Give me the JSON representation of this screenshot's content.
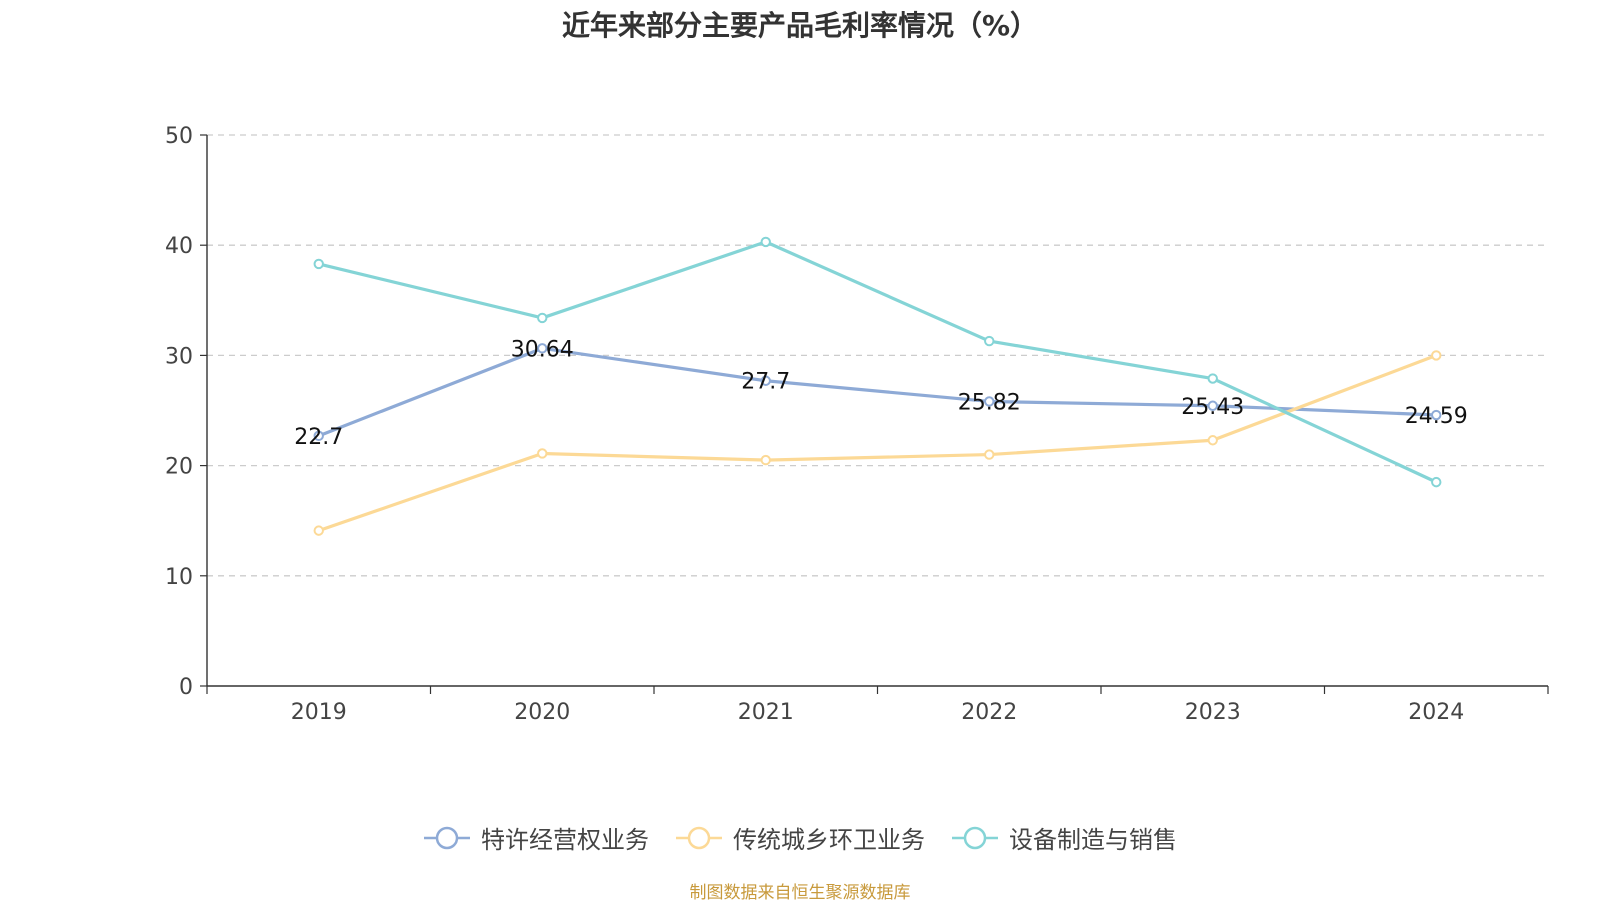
{
  "chart_data": {
    "type": "line",
    "title": "近年来部分主要产品毛利率情况（%）",
    "categories": [
      "2019",
      "2020",
      "2021",
      "2022",
      "2023",
      "2024"
    ],
    "ylim": [
      0,
      50
    ],
    "yticks": [
      0,
      10,
      20,
      30,
      40,
      50
    ],
    "xlabel": "",
    "ylabel": "",
    "grid": true,
    "legend_position": "bottom",
    "series": [
      {
        "name": "特许经营权业务",
        "color": "#8eaad6",
        "values": [
          22.7,
          30.64,
          27.7,
          25.82,
          25.43,
          24.59
        ],
        "labels": [
          "22.7",
          "30.64",
          "27.7",
          "25.82",
          "25.43",
          "24.59"
        ]
      },
      {
        "name": "传统城乡环卫业务",
        "color": "#fcd996",
        "values": [
          14.1,
          21.1,
          20.5,
          21.0,
          22.3,
          30.0
        ]
      },
      {
        "name": "设备制造与销售",
        "color": "#84d4d6",
        "values": [
          38.3,
          33.4,
          40.3,
          31.3,
          27.9,
          18.5
        ]
      }
    ]
  },
  "footer": {
    "source": "制图数据来自恒生聚源数据库"
  }
}
